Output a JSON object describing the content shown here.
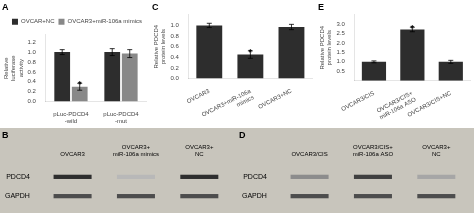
{
  "chart_data": [
    {
      "type": "bar",
      "title": "A",
      "ylabel": "Relative luciferase activity",
      "categories": [
        "pLuc-PDCD4 -wild",
        "pLuc-PDCD4 -mut"
      ],
      "series": [
        {
          "name": "OVCAR+NC",
          "color": "#2d2d2d",
          "values": [
            1.0,
            1.0
          ],
          "errors": [
            0.05,
            0.07
          ]
        },
        {
          "name": "OVCAR3+miR-106a mimics",
          "color": "#888888",
          "values": [
            0.3,
            0.97
          ],
          "errors": [
            0.07,
            0.08
          ]
        }
      ],
      "ylim": [
        0,
        1.35
      ],
      "yticks": [
        {
          "value": 0.0,
          "label": "0.0"
        },
        0.2,
        0.4,
        0.6,
        0.8,
        {
          "value": 1.0,
          "label": "1.0"
        },
        1.2
      ],
      "legend": "upper right",
      "grid": false,
      "annotations": [
        {
          "text": "*",
          "category": "pLuc-PDCD4 -wild",
          "series": "OVCAR3+miR-106a mimics"
        }
      ]
    },
    {
      "type": "heatmap",
      "title": "B",
      "categories": [
        "OVCAR3",
        "OVCAR3+\nmiR-106a mimics",
        "OVCAR3+\nNC"
      ],
      "series": [
        {
          "name": "PDCD4",
          "values": [
            0.82,
            0.28,
            0.82
          ]
        },
        {
          "name": "GAPDH",
          "values": [
            0.7,
            0.7,
            0.7
          ]
        }
      ],
      "color": "#c8c5bc",
      "grid": false
    },
    {
      "type": "bar",
      "title": "C",
      "ylabel": "Relative PDCD4 protein levels",
      "categories": [
        "OVCAR3",
        "OVCAR3+miR-106a mimics",
        "OVCAR3+NC"
      ],
      "values": [
        1.0,
        0.45,
        0.97
      ],
      "errors": [
        0.04,
        0.07,
        0.05
      ],
      "color": "#2d2d2d",
      "ylim": [
        0,
        1.2
      ],
      "yticks": [
        {
          "value": 0.0,
          "label": "0.0"
        },
        0.2,
        0.4,
        0.6,
        0.8,
        {
          "value": 1.0,
          "label": "1.0"
        }
      ],
      "grid": false,
      "annotations": [
        {
          "text": "*",
          "category": "OVCAR3+miR-106a mimics"
        }
      ]
    },
    {
      "type": "heatmap",
      "title": "D",
      "categories": [
        "OVCAR3/CIS",
        "OVCAR3/CIS+\nmiR-106a ASO",
        "OVCAR3+\nNC"
      ],
      "series": [
        {
          "name": "PDCD4",
          "values": [
            0.45,
            0.75,
            0.35
          ]
        },
        {
          "name": "GAPDH",
          "values": [
            0.7,
            0.7,
            0.7
          ]
        }
      ],
      "color": "#c8c5bc",
      "grid": false
    },
    {
      "type": "bar",
      "title": "E",
      "ylabel": "Relative PDCD4 protein levels",
      "categories": [
        "OVCAR3/CIS",
        "OVCAR3/CIS+\nmiR-106a ASO",
        "OVCAR3/CIS+NC"
      ],
      "values": [
        1.0,
        2.72,
        1.0
      ],
      "errors": [
        0.05,
        0.12,
        0.08
      ],
      "color": "#2d2d2d",
      "ylim": [
        0,
        3.5
      ],
      "yticks": [
        0.5,
        {
          "value": 1.0,
          "label": "1.0"
        },
        1.5,
        {
          "value": 2.0,
          "label": "2.0"
        },
        2.5,
        {
          "value": 3.0,
          "label": "3.0"
        }
      ],
      "grid": false,
      "annotations": [
        {
          "text": "*",
          "category": "OVCAR3/CIS+\nmiR-106a ASO"
        }
      ]
    }
  ]
}
